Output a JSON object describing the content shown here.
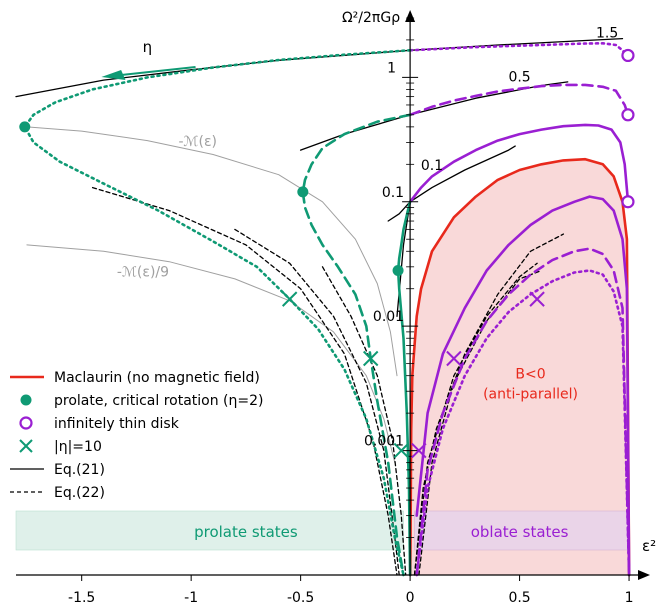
{
  "chart_data": {
    "type": "line",
    "xlabel": "ε²",
    "ylabel": "Ω²/2πGρ",
    "xlim": [
      -1.8,
      1.05
    ],
    "ylim": [
      0.0001,
      3
    ],
    "y_scale": "log",
    "x_ticks": [
      {
        "v": -1.5,
        "t": "-1.5"
      },
      {
        "v": -1,
        "t": "-1"
      },
      {
        "v": -0.5,
        "t": "-0.5"
      },
      {
        "v": 0,
        "t": "0"
      },
      {
        "v": 0.5,
        "t": "0.5"
      },
      {
        "v": 1,
        "t": "1"
      }
    ],
    "y_ticks": [
      {
        "v": 1,
        "t": "1"
      },
      {
        "v": 0.1,
        "t": "0.1"
      },
      {
        "v": 0.01,
        "t": "0.01"
      },
      {
        "v": 0.001,
        "t": "0.001"
      }
    ],
    "colors": {
      "maclaurin": "#e8291c",
      "prolate": "#0f9a74",
      "oblate": "#9a1fd2",
      "gray": "#a0a0a0",
      "black": "#000000",
      "fill_red": "#f9d9d9",
      "prolate_band": "#dff0ea",
      "oblate_band": "#ead4e8"
    },
    "curve_labels": [
      {
        "text": "1.5",
        "x": 0.9,
        "y": 2.1
      },
      {
        "text": "0.5",
        "x": 0.5,
        "y": 0.93
      },
      {
        "text": "0.1",
        "x": 0.1,
        "y": 0.18
      }
    ],
    "gray_labels": [
      {
        "text": "-ℳ(ε)",
        "x": -0.97,
        "y": 0.28
      },
      {
        "text": "-ℳ(ε)/9",
        "x": -1.22,
        "y": 0.025
      }
    ],
    "eta_label": "η",
    "region_label": [
      "B<0",
      "(anti-parallel)"
    ],
    "bands": [
      "prolate states",
      "oblate states"
    ],
    "legend": [
      {
        "label": "Maclaurin (no magnetic field)",
        "marker": "line-red"
      },
      {
        "label": "prolate, critical rotation (η=2)",
        "marker": "dot-green"
      },
      {
        "label": "infinitely thin disk",
        "marker": "circle-purple"
      },
      {
        "label": "|η|=10",
        "marker": "cross-green"
      },
      {
        "label": "Eq.(21)",
        "marker": "line-black"
      },
      {
        "label": "Eq.(22)",
        "marker": "dash-black"
      }
    ],
    "series": [
      {
        "group": "gray",
        "style": "solid",
        "points": [
          [
            -1.75,
            0.4
          ],
          [
            -1.5,
            0.37
          ],
          [
            -1.2,
            0.31
          ],
          [
            -0.9,
            0.24
          ],
          [
            -0.6,
            0.165
          ],
          [
            -0.4,
            0.1
          ],
          [
            -0.25,
            0.05
          ],
          [
            -0.15,
            0.022
          ],
          [
            -0.09,
            0.009
          ],
          [
            -0.06,
            0.004
          ]
        ]
      },
      {
        "group": "gray",
        "style": "solid",
        "points": [
          [
            -1.75,
            0.045
          ],
          [
            -1.4,
            0.04
          ],
          [
            -1.1,
            0.033
          ],
          [
            -0.8,
            0.024
          ],
          [
            -0.55,
            0.016
          ],
          [
            -0.35,
            0.009
          ],
          [
            -0.2,
            0.004
          ],
          [
            -0.12,
            0.0018
          ],
          [
            -0.07,
            0.0008
          ]
        ]
      },
      {
        "group": "black",
        "style": "solid",
        "points": [
          [
            -1.8,
            0.7
          ],
          [
            -1.4,
            0.95
          ],
          [
            -1,
            1.15
          ],
          [
            -0.6,
            1.37
          ],
          [
            -0.2,
            1.55
          ],
          [
            0,
            1.65
          ],
          [
            0.4,
            1.82
          ],
          [
            0.8,
            1.98
          ],
          [
            0.97,
            2.05
          ]
        ]
      },
      {
        "group": "black",
        "style": "solid",
        "points": [
          [
            -0.5,
            0.26
          ],
          [
            -0.3,
            0.35
          ],
          [
            0,
            0.5
          ],
          [
            0.3,
            0.68
          ],
          [
            0.6,
            0.86
          ],
          [
            0.72,
            0.92
          ]
        ]
      },
      {
        "group": "black",
        "style": "solid",
        "points": [
          [
            -0.1,
            0.07
          ],
          [
            -0.05,
            0.08
          ],
          [
            0,
            0.1
          ],
          [
            0.1,
            0.13
          ],
          [
            0.25,
            0.18
          ],
          [
            0.45,
            0.26
          ],
          [
            0.48,
            0.28
          ]
        ]
      },
      {
        "group": "black",
        "style": "solid",
        "points": [
          [
            -0.06,
            0.012
          ],
          [
            -0.03,
            0.045
          ],
          [
            0,
            0.1
          ]
        ]
      },
      {
        "group": "black",
        "style": "dashed",
        "points": [
          [
            -1.45,
            0.13
          ],
          [
            -1.1,
            0.085
          ],
          [
            -0.75,
            0.045
          ],
          [
            -0.5,
            0.02
          ],
          [
            -0.3,
            0.006
          ],
          [
            -0.17,
            0.0012
          ],
          [
            -0.1,
            0.0003
          ],
          [
            -0.06,
            0.0001
          ]
        ]
      },
      {
        "group": "black",
        "style": "dashed",
        "points": [
          [
            -0.8,
            0.06
          ],
          [
            -0.55,
            0.032
          ],
          [
            -0.35,
            0.012
          ],
          [
            -0.2,
            0.0035
          ],
          [
            -0.12,
            0.001
          ],
          [
            -0.07,
            0.0002
          ],
          [
            -0.05,
            0.0001
          ]
        ]
      },
      {
        "group": "black",
        "style": "dashed",
        "points": [
          [
            -0.4,
            0.03
          ],
          [
            -0.27,
            0.012
          ],
          [
            -0.15,
            0.004
          ],
          [
            -0.08,
            0.0012
          ],
          [
            -0.04,
            0.0003
          ],
          [
            -0.02,
            0.0001
          ]
        ]
      },
      {
        "group": "black",
        "style": "dashed",
        "points": [
          [
            0.02,
            0.0001
          ],
          [
            0.06,
            0.0005
          ],
          [
            0.12,
            0.0015
          ],
          [
            0.25,
            0.006
          ],
          [
            0.4,
            0.018
          ],
          [
            0.55,
            0.04
          ],
          [
            0.7,
            0.055
          ]
        ]
      },
      {
        "group": "black",
        "style": "dashed",
        "points": [
          [
            0.02,
            0.0001
          ],
          [
            0.08,
            0.0008
          ],
          [
            0.2,
            0.004
          ],
          [
            0.35,
            0.012
          ],
          [
            0.5,
            0.025
          ],
          [
            0.58,
            0.032
          ]
        ]
      },
      {
        "group": "black",
        "style": "dashed",
        "points": [
          [
            0.04,
            0.0001
          ],
          [
            0.1,
            0.0008
          ],
          [
            0.2,
            0.0035
          ],
          [
            0.35,
            0.011
          ],
          [
            0.5,
            0.024
          ],
          [
            0.6,
            0.028
          ]
        ]
      },
      {
        "group": "maclaurin",
        "style": "solid",
        "points": [
          [
            0.001,
            0.0001
          ],
          [
            0.005,
            0.0015
          ],
          [
            0.01,
            0.004
          ],
          [
            0.03,
            0.012
          ],
          [
            0.05,
            0.02
          ],
          [
            0.1,
            0.04
          ],
          [
            0.2,
            0.075
          ],
          [
            0.3,
            0.11
          ],
          [
            0.4,
            0.15
          ],
          [
            0.5,
            0.18
          ],
          [
            0.6,
            0.2
          ],
          [
            0.7,
            0.215
          ],
          [
            0.8,
            0.22
          ],
          [
            0.88,
            0.2
          ],
          [
            0.93,
            0.16
          ],
          [
            0.97,
            0.1
          ],
          [
            0.99,
            0.05
          ],
          [
            1,
            0.0001
          ]
        ]
      },
      {
        "group": "oblate",
        "style": "solid",
        "points": [
          [
            0,
            0.1
          ],
          [
            0.05,
            0.13
          ],
          [
            0.1,
            0.16
          ],
          [
            0.2,
            0.21
          ],
          [
            0.3,
            0.26
          ],
          [
            0.4,
            0.31
          ],
          [
            0.5,
            0.35
          ],
          [
            0.6,
            0.38
          ],
          [
            0.7,
            0.405
          ],
          [
            0.8,
            0.415
          ],
          [
            0.86,
            0.41
          ],
          [
            0.92,
            0.38
          ],
          [
            0.96,
            0.3
          ],
          [
            0.98,
            0.2
          ],
          [
            0.995,
            0.1
          ]
        ]
      },
      {
        "group": "oblate",
        "style": "solid",
        "points": [
          [
            0.03,
            0.0003
          ],
          [
            0.08,
            0.002
          ],
          [
            0.15,
            0.006
          ],
          [
            0.25,
            0.014
          ],
          [
            0.35,
            0.028
          ],
          [
            0.45,
            0.045
          ],
          [
            0.55,
            0.065
          ],
          [
            0.65,
            0.085
          ],
          [
            0.75,
            0.1
          ],
          [
            0.82,
            0.11
          ],
          [
            0.88,
            0.105
          ],
          [
            0.93,
            0.085
          ],
          [
            0.97,
            0.05
          ],
          [
            0.99,
            0.02
          ],
          [
            1,
            0.0001
          ]
        ]
      },
      {
        "group": "oblate",
        "style": "dashed",
        "points": [
          [
            0,
            0.5
          ],
          [
            0.1,
            0.58
          ],
          [
            0.2,
            0.65
          ],
          [
            0.3,
            0.71
          ],
          [
            0.4,
            0.77
          ],
          [
            0.5,
            0.81
          ],
          [
            0.6,
            0.85
          ],
          [
            0.7,
            0.87
          ],
          [
            0.8,
            0.87
          ],
          [
            0.88,
            0.84
          ],
          [
            0.94,
            0.78
          ],
          [
            0.98,
            0.6
          ],
          [
            0.995,
            0.5
          ]
        ]
      },
      {
        "group": "oblate",
        "style": "dashed",
        "points": [
          [
            0.03,
            0.0001
          ],
          [
            0.08,
            0.0007
          ],
          [
            0.15,
            0.002
          ],
          [
            0.25,
            0.0055
          ],
          [
            0.35,
            0.011
          ],
          [
            0.45,
            0.018
          ],
          [
            0.55,
            0.026
          ],
          [
            0.65,
            0.034
          ],
          [
            0.75,
            0.04
          ],
          [
            0.82,
            0.042
          ],
          [
            0.88,
            0.038
          ],
          [
            0.93,
            0.028
          ],
          [
            0.97,
            0.014
          ],
          [
            1,
            0.0001
          ]
        ]
      },
      {
        "group": "oblate",
        "style": "dotted",
        "points": [
          [
            0,
            1.65
          ],
          [
            0.3,
            1.75
          ],
          [
            0.6,
            1.82
          ],
          [
            0.8,
            1.87
          ],
          [
            0.88,
            1.88
          ],
          [
            0.94,
            1.82
          ],
          [
            0.97,
            1.65
          ],
          [
            0.99,
            1.5
          ]
        ]
      },
      {
        "group": "oblate",
        "style": "dotted",
        "points": [
          [
            0.03,
            0.0001
          ],
          [
            0.08,
            0.0005
          ],
          [
            0.15,
            0.0015
          ],
          [
            0.25,
            0.004
          ],
          [
            0.35,
            0.008
          ],
          [
            0.45,
            0.013
          ],
          [
            0.55,
            0.018
          ],
          [
            0.65,
            0.023
          ],
          [
            0.75,
            0.027
          ],
          [
            0.82,
            0.028
          ],
          [
            0.88,
            0.026
          ],
          [
            0.93,
            0.019
          ],
          [
            0.97,
            0.01
          ],
          [
            1,
            0.0001
          ]
        ]
      },
      {
        "group": "prolate",
        "style": "dotted",
        "points": [
          [
            0,
            1.65
          ],
          [
            -0.3,
            1.52
          ],
          [
            -0.6,
            1.38
          ],
          [
            -0.9,
            1.2
          ],
          [
            -1.2,
            1.0
          ],
          [
            -1.45,
            0.8
          ],
          [
            -1.62,
            0.63
          ],
          [
            -1.72,
            0.5
          ],
          [
            -1.76,
            0.4
          ],
          [
            -1.72,
            0.3
          ],
          [
            -1.6,
            0.21
          ],
          [
            -1.4,
            0.14
          ],
          [
            -1.15,
            0.085
          ],
          [
            -0.9,
            0.048
          ],
          [
            -0.7,
            0.03
          ],
          [
            -0.55,
            0.0165
          ],
          [
            -0.42,
            0.0095
          ],
          [
            -0.3,
            0.0045
          ],
          [
            -0.2,
            0.0018
          ],
          [
            -0.12,
            0.0006
          ],
          [
            -0.07,
            0.0002
          ],
          [
            -0.03,
            0.0001
          ]
        ]
      },
      {
        "group": "prolate",
        "style": "dashed",
        "points": [
          [
            0,
            0.5
          ],
          [
            -0.15,
            0.44
          ],
          [
            -0.3,
            0.35
          ],
          [
            -0.4,
            0.27
          ],
          [
            -0.45,
            0.2
          ],
          [
            -0.48,
            0.15
          ],
          [
            -0.49,
            0.12
          ],
          [
            -0.48,
            0.09
          ],
          [
            -0.45,
            0.065
          ],
          [
            -0.4,
            0.045
          ],
          [
            -0.33,
            0.03
          ],
          [
            -0.25,
            0.018
          ],
          [
            -0.2,
            0.01
          ],
          [
            -0.18,
            0.0055
          ],
          [
            -0.15,
            0.0025
          ],
          [
            -0.1,
            0.0008
          ],
          [
            -0.06,
            0.0002
          ],
          [
            -0.03,
            0.0001
          ]
        ]
      },
      {
        "group": "prolate",
        "style": "solid",
        "points": [
          [
            0,
            0.1
          ],
          [
            -0.01,
            0.085
          ],
          [
            -0.03,
            0.06
          ],
          [
            -0.04,
            0.045
          ],
          [
            -0.05,
            0.035
          ],
          [
            -0.055,
            0.028
          ],
          [
            -0.05,
            0.02
          ],
          [
            -0.03,
            0.008
          ],
          [
            -0.015,
            0.002
          ],
          [
            -0.005,
            0.0005
          ],
          [
            0,
            0.0001
          ]
        ]
      }
    ],
    "critical_points": [
      [
        -1.76,
        0.4
      ],
      [
        -0.49,
        0.12
      ],
      [
        -0.055,
        0.028
      ]
    ],
    "thin_disk_points": [
      [
        0.995,
        1.5
      ],
      [
        0.995,
        0.5
      ],
      [
        0.995,
        0.1
      ]
    ],
    "eta10_crosses": [
      {
        "x": -0.55,
        "y": 0.0165,
        "c": "prolate"
      },
      {
        "x": -0.18,
        "y": 0.0055,
        "c": "prolate"
      },
      {
        "x": -0.04,
        "y": 0.001,
        "c": "prolate"
      },
      {
        "x": 0.04,
        "y": 0.001,
        "c": "oblate"
      },
      {
        "x": 0.2,
        "y": 0.0055,
        "c": "oblate"
      },
      {
        "x": 0.58,
        "y": 0.0165,
        "c": "oblate"
      }
    ]
  }
}
